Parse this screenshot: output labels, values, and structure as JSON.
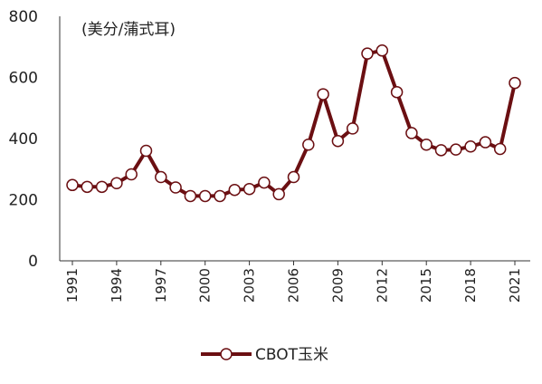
{
  "chart_data": {
    "type": "line",
    "unit_label": "(美分/蒲式耳)",
    "x": [
      1991,
      1992,
      1993,
      1994,
      1995,
      1996,
      1997,
      1998,
      1999,
      2000,
      2001,
      2002,
      2003,
      2004,
      2005,
      2006,
      2007,
      2008,
      2009,
      2010,
      2011,
      2012,
      2013,
      2014,
      2015,
      2016,
      2017,
      2018,
      2019,
      2020,
      2021
    ],
    "x_tick_labels": [
      "1991",
      "1994",
      "1997",
      "2000",
      "2003",
      "2006",
      "2009",
      "2012",
      "2015",
      "2018",
      "2021"
    ],
    "y_tick_labels": [
      "0",
      "200",
      "400",
      "600",
      "800"
    ],
    "ylim": [
      0,
      800
    ],
    "series": [
      {
        "name": "CBOT玉米",
        "color": "#6b0f12",
        "values": [
          248,
          242,
          242,
          254,
          283,
          360,
          274,
          240,
          212,
          212,
          212,
          232,
          235,
          256,
          218,
          274,
          380,
          545,
          392,
          433,
          678,
          688,
          552,
          418,
          380,
          362,
          364,
          374,
          388,
          366,
          582
        ]
      }
    ],
    "grid": false,
    "legend": "bottom"
  }
}
